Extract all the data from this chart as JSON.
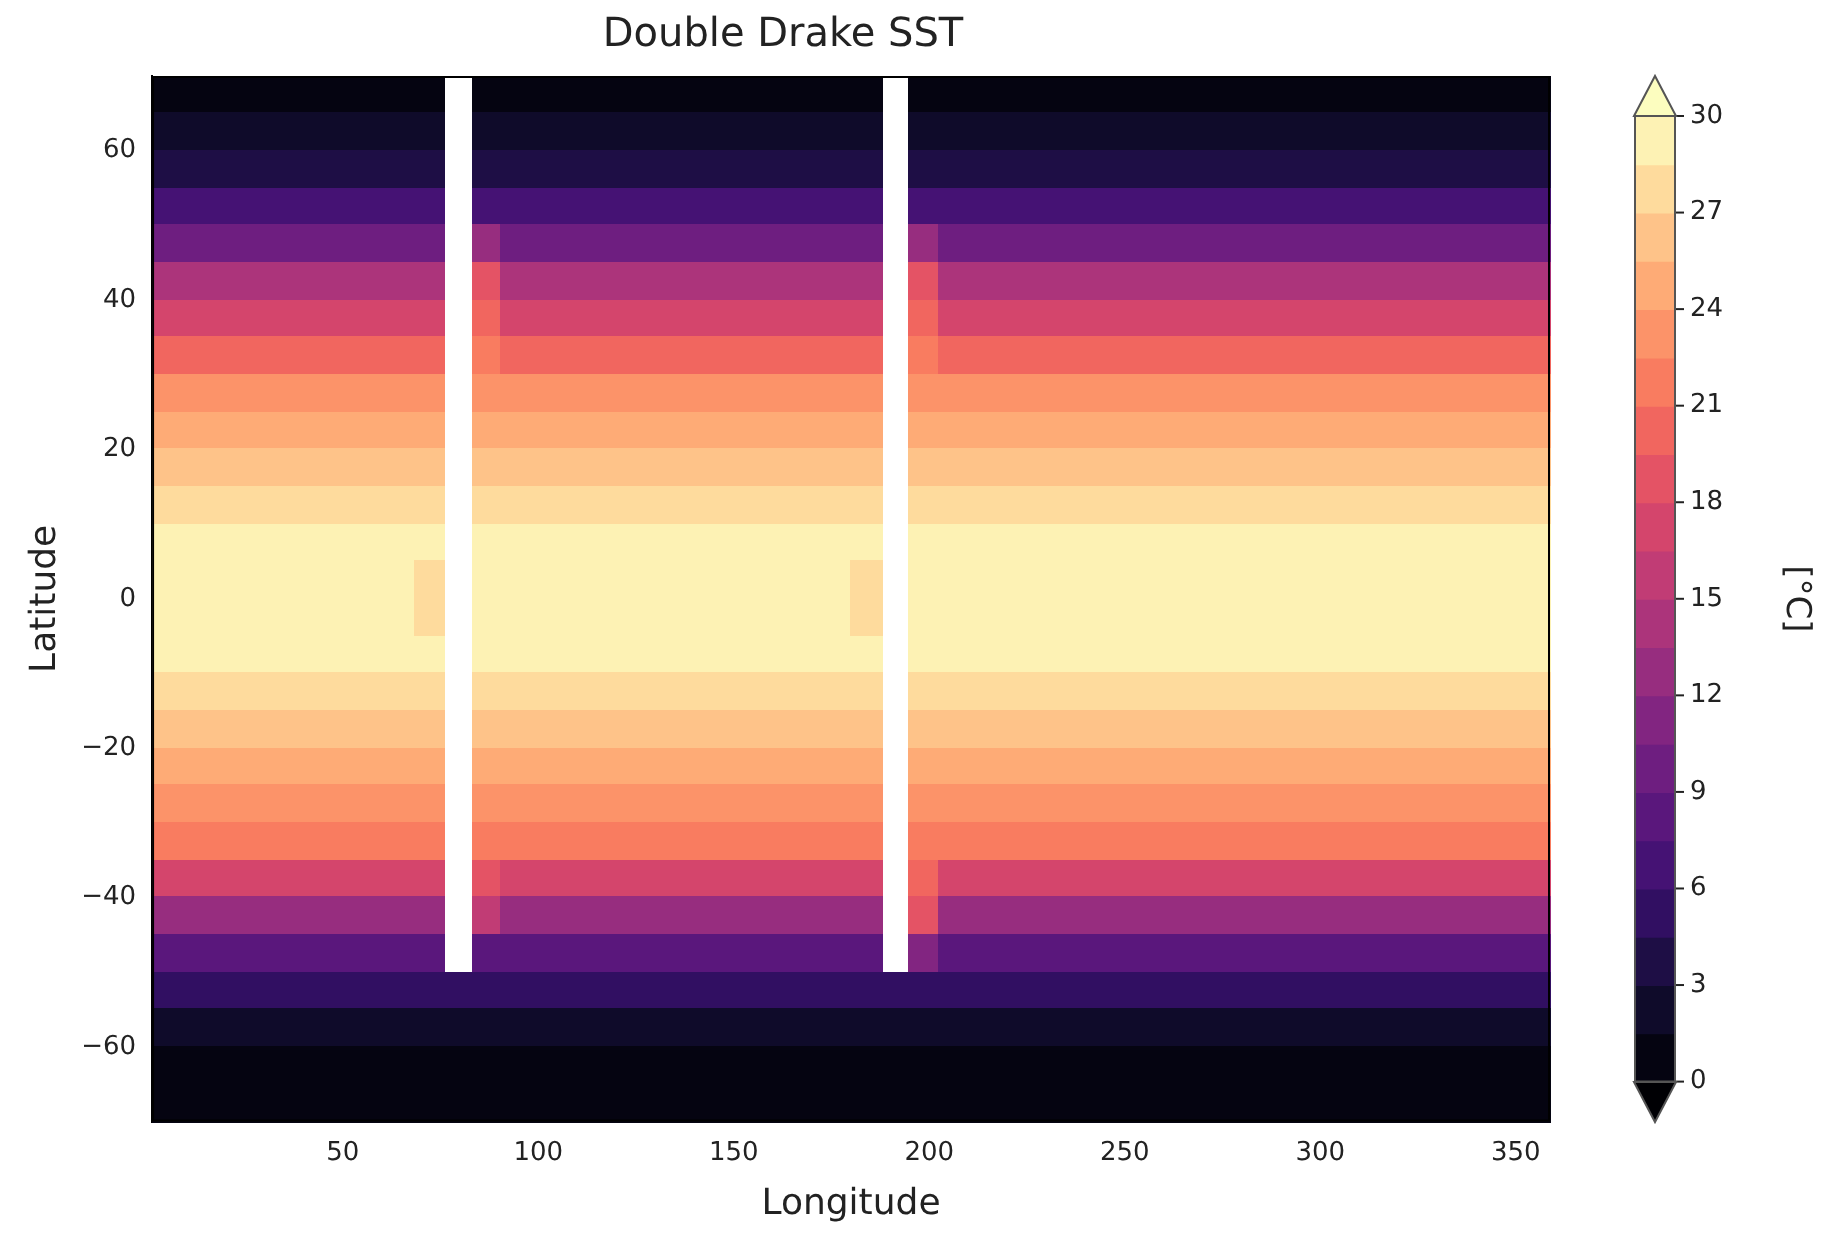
{
  "chart_data": {
    "type": "heatmap",
    "title": "Double Drake SST",
    "xlabel": "Longitude",
    "ylabel": "Latitude",
    "clabel": "[°C]",
    "xlim": [
      1.25,
      358.75
    ],
    "xticks": [
      50,
      100,
      150,
      200,
      250,
      300,
      350
    ],
    "ylim": [
      -70,
      70
    ],
    "yticks": [
      -60,
      -40,
      -20,
      0,
      20,
      40,
      60
    ],
    "clim": [
      0,
      30
    ],
    "cticks": [
      0,
      3,
      6,
      9,
      12,
      15,
      18,
      21,
      24,
      27,
      30
    ],
    "grid": false,
    "cells": [
      [
        0.5,
        0.5,
        0.5,
        0.5,
        0.5,
        0.5,
        0.5,
        0.5,
        0.5,
        0.5,
        null,
        0.5,
        0.5,
        0.5,
        0.5,
        0.5,
        0.5,
        0.5,
        0.5,
        0.5,
        0.5,
        0.5,
        0.5,
        0.5,
        0.5,
        null,
        0.5,
        0.5,
        0.5,
        0.5,
        0.5,
        0.5,
        0.5,
        0.5,
        0.5,
        0.5,
        0.5,
        0.5,
        0.5,
        0.5,
        0.5,
        0.5,
        0.5,
        0.5,
        0.5,
        0.5,
        0.5,
        0.5
      ],
      [
        1.5,
        1.5,
        1.5,
        1.5,
        1.5,
        1.5,
        1.5,
        1.5,
        1.5,
        1.5,
        null,
        1.5,
        1.5,
        1.5,
        1.5,
        1.5,
        1.5,
        1.5,
        1.5,
        1.5,
        1.5,
        1.5,
        1.5,
        1.5,
        1.5,
        null,
        1.5,
        1.5,
        1.5,
        1.5,
        1.5,
        1.5,
        1.5,
        1.5,
        1.5,
        1.5,
        1.5,
        1.5,
        1.5,
        1.5,
        1.5,
        1.5,
        1.5,
        1.5,
        1.5,
        1.5,
        1.5,
        1.5
      ],
      [
        3.5,
        3.5,
        3.5,
        3.5,
        3.5,
        3.5,
        3.5,
        3.5,
        3.5,
        3.5,
        null,
        3.5,
        3.5,
        3.5,
        3.5,
        3.5,
        3.5,
        3.5,
        3.5,
        3.5,
        3.5,
        3.5,
        3.5,
        3.5,
        3.5,
        null,
        3.5,
        3.5,
        3.5,
        3.5,
        3.5,
        3.5,
        3.5,
        3.5,
        3.5,
        3.5,
        3.5,
        3.5,
        3.5,
        3.5,
        3.5,
        3.5,
        3.5,
        3.5,
        3.5,
        3.5,
        3.5,
        3.5
      ],
      [
        6.5,
        6.5,
        6.5,
        6.5,
        6.5,
        6.5,
        6.5,
        6.5,
        6.5,
        6.5,
        null,
        6.5,
        6.5,
        6.5,
        6.5,
        6.5,
        6.5,
        6.5,
        6.5,
        6.5,
        6.5,
        6.5,
        6.5,
        6.5,
        6.5,
        null,
        6.5,
        6.5,
        6.5,
        6.5,
        6.5,
        6.5,
        6.5,
        6.5,
        6.5,
        6.5,
        6.5,
        6.5,
        6.5,
        6.5,
        6.5,
        6.5,
        6.5,
        6.5,
        6.5,
        6.5,
        6.5,
        6.5
      ],
      [
        10,
        10,
        10,
        10,
        10,
        10,
        10,
        10,
        10,
        10,
        null,
        13,
        10,
        10,
        10,
        10,
        10,
        10,
        10,
        10,
        10,
        10,
        10,
        10,
        10,
        null,
        13,
        10,
        10,
        10,
        10,
        10,
        10,
        10,
        10,
        10,
        10,
        10,
        10,
        10,
        10,
        10,
        10,
        10,
        10,
        10,
        10,
        10
      ],
      [
        14,
        14,
        14,
        14,
        14,
        14,
        14,
        14,
        14,
        14,
        null,
        19,
        14,
        14,
        14,
        14,
        14,
        14,
        14,
        14,
        14,
        14,
        14,
        14,
        14,
        null,
        19,
        14,
        14,
        14,
        14,
        14,
        14,
        14,
        14,
        14,
        14,
        14,
        14,
        14,
        14,
        14,
        14,
        14,
        14,
        14,
        14,
        14
      ],
      [
        17.5,
        17.5,
        17.5,
        17.5,
        17.5,
        17.5,
        17.5,
        17.5,
        17.5,
        17.5,
        null,
        20,
        17.5,
        17.5,
        17.5,
        17.5,
        17.5,
        17.5,
        17.5,
        17.5,
        17.5,
        17.5,
        17.5,
        17.5,
        17.5,
        null,
        20,
        17.5,
        17.5,
        17.5,
        17.5,
        17.5,
        17.5,
        17.5,
        17.5,
        17.5,
        17.5,
        17.5,
        17.5,
        17.5,
        17.5,
        17.5,
        17.5,
        17.5,
        17.5,
        17.5,
        17.5,
        17.5
      ],
      [
        20.5,
        20.5,
        20.5,
        20.5,
        20.5,
        20.5,
        20.5,
        20.5,
        20.5,
        20.5,
        null,
        22,
        20.5,
        20.5,
        20.5,
        20.5,
        20.5,
        20.5,
        20.5,
        20.5,
        20.5,
        20.5,
        20.5,
        20.5,
        20.5,
        null,
        22,
        20.5,
        20.5,
        20.5,
        20.5,
        20.5,
        20.5,
        20.5,
        20.5,
        20.5,
        20.5,
        20.5,
        20.5,
        20.5,
        20.5,
        20.5,
        20.5,
        20.5,
        20.5,
        20.5,
        20.5,
        20.5
      ],
      [
        23,
        23,
        23,
        23,
        23,
        23,
        23,
        23,
        23,
        23,
        null,
        23,
        23,
        23,
        23,
        23,
        23,
        23,
        23,
        23,
        23,
        23,
        23,
        23,
        23,
        null,
        23,
        23,
        23,
        23,
        23,
        23,
        23,
        23,
        23,
        23,
        23,
        23,
        23,
        23,
        23,
        23,
        23,
        23,
        23,
        23,
        23,
        23
      ],
      [
        25,
        25,
        25,
        25,
        25,
        25,
        25,
        25,
        25,
        25,
        null,
        25,
        25,
        25,
        25,
        25,
        25,
        25,
        25,
        25,
        25,
        25,
        25,
        25,
        25,
        null,
        25,
        25,
        25,
        25,
        25,
        25,
        25,
        25,
        25,
        25,
        25,
        25,
        25,
        25,
        25,
        25,
        25,
        25,
        25,
        25,
        25,
        25
      ],
      [
        26,
        26,
        26,
        26,
        26,
        26,
        26,
        26,
        26,
        26,
        null,
        26,
        26,
        26,
        26,
        26,
        26,
        26,
        26,
        26,
        26,
        26,
        26,
        26,
        26,
        null,
        26,
        26,
        26,
        26,
        26,
        26,
        26,
        26,
        26,
        26,
        26,
        26,
        26,
        26,
        26,
        26,
        26,
        26,
        26,
        26,
        26,
        26
      ],
      [
        27.5,
        27.5,
        27.5,
        27.5,
        27.5,
        27.5,
        27.5,
        27.5,
        27.5,
        27.5,
        null,
        27.5,
        27.5,
        27.5,
        27.5,
        27.5,
        27.5,
        27.5,
        27.5,
        27.5,
        27.5,
        27.5,
        27.5,
        27.5,
        27.5,
        null,
        27.5,
        27.5,
        27.5,
        27.5,
        27.5,
        27.5,
        27.5,
        27.5,
        27.5,
        27.5,
        27.5,
        27.5,
        27.5,
        27.5,
        27.5,
        27.5,
        27.5,
        27.5,
        27.5,
        27.5,
        27.5,
        27.5
      ],
      [
        29,
        29,
        29,
        29,
        29,
        29,
        29,
        29,
        29,
        29,
        null,
        29,
        29,
        29,
        29,
        29,
        29,
        29,
        29,
        29,
        29,
        29,
        29,
        29,
        29,
        null,
        29,
        29,
        29,
        29,
        29,
        29,
        29,
        29,
        29,
        29,
        29,
        29,
        29,
        29,
        29,
        29,
        29,
        29,
        29,
        29,
        29,
        29
      ],
      [
        29.5,
        29.5,
        29.5,
        29.5,
        29.5,
        29.5,
        29.5,
        29.5,
        29.5,
        28,
        null,
        29.5,
        29.5,
        29.5,
        29.5,
        29.5,
        29.5,
        29.5,
        29.5,
        29.5,
        29.5,
        29.5,
        29.5,
        29.5,
        28,
        null,
        29.5,
        29.5,
        29.5,
        29.5,
        29.5,
        29.5,
        29.5,
        29.5,
        29.5,
        29.5,
        29.5,
        29.5,
        29.5,
        29.5,
        29.5,
        29.5,
        29.5,
        29.5,
        29.5,
        29.5,
        29.5,
        29.5
      ],
      [
        29.5,
        29.5,
        29.5,
        29.5,
        29.5,
        29.5,
        29.5,
        29.5,
        29.5,
        28,
        null,
        29.5,
        29.5,
        29.5,
        29.5,
        29.5,
        29.5,
        29.5,
        29.5,
        29.5,
        29.5,
        29.5,
        29.5,
        29.5,
        28,
        null,
        29.5,
        29.5,
        29.5,
        29.5,
        29.5,
        29.5,
        29.5,
        29.5,
        29.5,
        29.5,
        29.5,
        29.5,
        29.5,
        29.5,
        29.5,
        29.5,
        29.5,
        29.5,
        29.5,
        29.5,
        29.5,
        29.5
      ],
      [
        29,
        29,
        29,
        29,
        29,
        29,
        29,
        29,
        29,
        29,
        null,
        29,
        29,
        29,
        29,
        29,
        29,
        29,
        29,
        29,
        29,
        29,
        29,
        29,
        29,
        null,
        29,
        29,
        29,
        29,
        29,
        29,
        29,
        29,
        29,
        29,
        29,
        29,
        29,
        29,
        29,
        29,
        29,
        29,
        29,
        29,
        29,
        29
      ],
      [
        27.5,
        27.5,
        27.5,
        27.5,
        27.5,
        27.5,
        27.5,
        27.5,
        27.5,
        27.5,
        null,
        27.5,
        27.5,
        27.5,
        27.5,
        27.5,
        27.5,
        27.5,
        27.5,
        27.5,
        27.5,
        27.5,
        27.5,
        27.5,
        27.5,
        null,
        27.5,
        27.5,
        27.5,
        27.5,
        27.5,
        27.5,
        27.5,
        27.5,
        27.5,
        27.5,
        27.5,
        27.5,
        27.5,
        27.5,
        27.5,
        27.5,
        27.5,
        27.5,
        27.5,
        27.5,
        27.5,
        27.5
      ],
      [
        26,
        26,
        26,
        26,
        26,
        26,
        26,
        26,
        26,
        26,
        null,
        26,
        26,
        26,
        26,
        26,
        26,
        26,
        26,
        26,
        26,
        26,
        26,
        26,
        26,
        null,
        26,
        26,
        26,
        26,
        26,
        26,
        26,
        26,
        26,
        26,
        26,
        26,
        26,
        26,
        26,
        26,
        26,
        26,
        26,
        26,
        26,
        26
      ],
      [
        25,
        25,
        25,
        25,
        25,
        25,
        25,
        25,
        25,
        25,
        null,
        25,
        25,
        25,
        25,
        25,
        25,
        25,
        25,
        25,
        25,
        25,
        25,
        25,
        25,
        null,
        25,
        25,
        25,
        25,
        25,
        25,
        25,
        25,
        25,
        25,
        25,
        25,
        25,
        25,
        25,
        25,
        25,
        25,
        25,
        25,
        25,
        25
      ],
      [
        23,
        23,
        23,
        23,
        23,
        23,
        23,
        23,
        23,
        23,
        null,
        23,
        23,
        23,
        23,
        23,
        23,
        23,
        23,
        23,
        23,
        23,
        23,
        23,
        23,
        null,
        23,
        23,
        23,
        23,
        23,
        23,
        23,
        23,
        23,
        23,
        23,
        23,
        23,
        23,
        23,
        23,
        23,
        23,
        23,
        23,
        23,
        23
      ],
      [
        21,
        21,
        21,
        21,
        21,
        21,
        21,
        21,
        21,
        21,
        null,
        22,
        21,
        21,
        21,
        21,
        21,
        21,
        21,
        21,
        21,
        21,
        21,
        21,
        21,
        null,
        22,
        21,
        21,
        21,
        21,
        21,
        21,
        21,
        21,
        21,
        21,
        21,
        21,
        21,
        21,
        21,
        21,
        21,
        21,
        21,
        21,
        21
      ],
      [
        17.5,
        17.5,
        17.5,
        17.5,
        17.5,
        17.5,
        17.5,
        17.5,
        17.5,
        17.5,
        null,
        19,
        17.5,
        17.5,
        17.5,
        17.5,
        17.5,
        17.5,
        17.5,
        17.5,
        17.5,
        17.5,
        17.5,
        17.5,
        17.5,
        null,
        20,
        17.5,
        17.5,
        17.5,
        17.5,
        17.5,
        17.5,
        17.5,
        17.5,
        17.5,
        17.5,
        17.5,
        17.5,
        17.5,
        17.5,
        17.5,
        17.5,
        17.5,
        17.5,
        17.5,
        17.5,
        17.5
      ],
      [
        13,
        13,
        13,
        13,
        13,
        13,
        13,
        13,
        13,
        13,
        null,
        15,
        13,
        13,
        13,
        13,
        13,
        13,
        13,
        13,
        13,
        13,
        13,
        13,
        13,
        null,
        18,
        13,
        13,
        13,
        13,
        13,
        13,
        13,
        13,
        13,
        13,
        13,
        13,
        13,
        13,
        13,
        13,
        13,
        13,
        13,
        13,
        13
      ],
      [
        8.5,
        8.5,
        8.5,
        8.5,
        8.5,
        8.5,
        8.5,
        8.5,
        8.5,
        8.5,
        null,
        8.5,
        8.5,
        8.5,
        8.5,
        8.5,
        8.5,
        8.5,
        8.5,
        8.5,
        8.5,
        8.5,
        8.5,
        8.5,
        8.5,
        null,
        11,
        8.5,
        8.5,
        8.5,
        8.5,
        8.5,
        8.5,
        8.5,
        8.5,
        8.5,
        8.5,
        8.5,
        8.5,
        8.5,
        8.5,
        8.5,
        8.5,
        8.5,
        8.5,
        8.5,
        8.5,
        8.5
      ],
      [
        4.5,
        4.5,
        4.5,
        4.5,
        4.5,
        4.5,
        4.5,
        4.5,
        4.5,
        4.5,
        4.5,
        4.5,
        4.5,
        4.5,
        4.5,
        4.5,
        4.5,
        4.5,
        4.5,
        4.5,
        4.5,
        4.5,
        4.5,
        4.5,
        4.5,
        4.5,
        4.5,
        4.5,
        4.5,
        4.5,
        4.5,
        4.5,
        4.5,
        4.5,
        4.5,
        4.5,
        4.5,
        4.5,
        4.5,
        4.5,
        4.5,
        4.5,
        4.5,
        4.5,
        4.5,
        4.5,
        4.5,
        4.5
      ],
      [
        2,
        2,
        2,
        2,
        2,
        2,
        2,
        2,
        2,
        2,
        2,
        2,
        2,
        2,
        2,
        2,
        2,
        2,
        2,
        2,
        2,
        2,
        2,
        2,
        2,
        2,
        2,
        2,
        2,
        2,
        2,
        2,
        2,
        2,
        2,
        2,
        2,
        2,
        2,
        2,
        2,
        2,
        2,
        2,
        2,
        2,
        2,
        2
      ],
      [
        0.5,
        0.5,
        0.5,
        0.5,
        0.5,
        0.5,
        0.5,
        0.5,
        0.5,
        0.5,
        0.5,
        0.5,
        0.5,
        0.5,
        0.5,
        0.5,
        0.5,
        0.5,
        0.5,
        0.5,
        0.5,
        0.5,
        0.5,
        0.5,
        0.5,
        0.5,
        0.5,
        0.5,
        0.5,
        0.5,
        0.5,
        0.5,
        0.5,
        0.5,
        0.5,
        0.5,
        0.5,
        0.5,
        0.5,
        0.5,
        0.5,
        0.5,
        0.5,
        0.5,
        0.5,
        0.5,
        0.5,
        0.5
      ],
      [
        0,
        0,
        0,
        0,
        0,
        0,
        0,
        0,
        0,
        0,
        0,
        0,
        0,
        0,
        0,
        0,
        0,
        0,
        0,
        0,
        0,
        0,
        0,
        0,
        0,
        0,
        0,
        0,
        0,
        0,
        0,
        0,
        0,
        0,
        0,
        0,
        0,
        0,
        0,
        0,
        0,
        0,
        0,
        0,
        0,
        0,
        0,
        0
      ]
    ]
  }
}
